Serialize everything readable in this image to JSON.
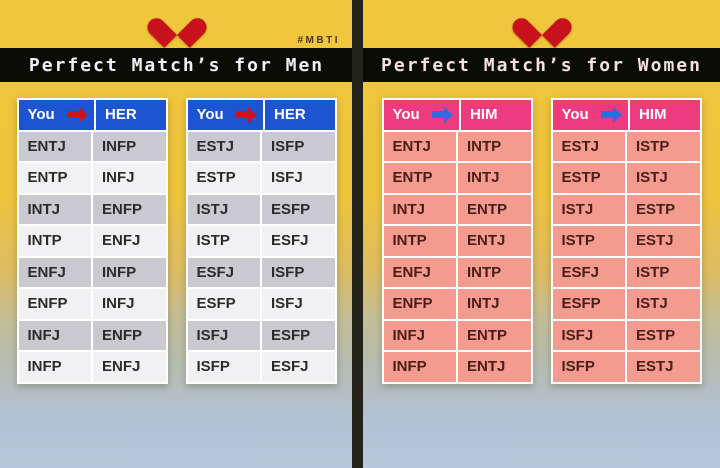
{
  "colors": {
    "bg_top": "#f0c63c",
    "bg_bottom": "#b7c7dc",
    "divider": "#23231a",
    "banner_bg": "#0c0c07",
    "heart": "#c9111d",
    "hashtag_text": "#4a3413",
    "header_text": "#ffffff",
    "men_header_bg": "#1c54d2",
    "men_arrow": "#cc1421",
    "men_row_odd_bg": "#c9c9cf",
    "men_row_even_bg": "#f1f1f4",
    "men_row_text": "#2b2b2b",
    "men_banner_text": "#edf1f7",
    "women_header_bg": "#ee3b7e",
    "women_arrow": "#2e6ce2",
    "women_row_bg": "#f39b8e",
    "women_row_text": "#4b1d17",
    "women_banner_text": "#f5dfe6"
  },
  "panels": [
    {
      "id": "men",
      "hashtag": "#MBTI",
      "banner": "Perfect Match’s for Men"
    },
    {
      "id": "women",
      "banner": "Perfect Match’s for Women"
    }
  ],
  "chart_data": [
    {
      "type": "table",
      "title": "Perfect Match’s for Men",
      "columns": [
        "You",
        "HER"
      ],
      "rows": [
        [
          "ENTJ",
          "INFP"
        ],
        [
          "ENTP",
          "INFJ"
        ],
        [
          "INTJ",
          "ENFP"
        ],
        [
          "INTP",
          "ENFJ"
        ],
        [
          "ENFJ",
          "INFP"
        ],
        [
          "ENFP",
          "INFJ"
        ],
        [
          "INFJ",
          "ENFP"
        ],
        [
          "INFP",
          "ENFJ"
        ]
      ]
    },
    {
      "type": "table",
      "title": "Perfect Match’s for Men",
      "columns": [
        "You",
        "HER"
      ],
      "rows": [
        [
          "ESTJ",
          "ISFP"
        ],
        [
          "ESTP",
          "ISFJ"
        ],
        [
          "ISTJ",
          "ESFP"
        ],
        [
          "ISTP",
          "ESFJ"
        ],
        [
          "ESFJ",
          "ISFP"
        ],
        [
          "ESFP",
          "ISFJ"
        ],
        [
          "ISFJ",
          "ESFP"
        ],
        [
          "ISFP",
          "ESFJ"
        ]
      ]
    },
    {
      "type": "table",
      "title": "Perfect Match’s for Women",
      "columns": [
        "You",
        "HIM"
      ],
      "rows": [
        [
          "ENTJ",
          "INTP"
        ],
        [
          "ENTP",
          "INTJ"
        ],
        [
          "INTJ",
          "ENTP"
        ],
        [
          "INTP",
          "ENTJ"
        ],
        [
          "ENFJ",
          "INTP"
        ],
        [
          "ENFP",
          "INTJ"
        ],
        [
          "INFJ",
          "ENTP"
        ],
        [
          "INFP",
          "ENTJ"
        ]
      ]
    },
    {
      "type": "table",
      "title": "Perfect Match’s for Women",
      "columns": [
        "You",
        "HIM"
      ],
      "rows": [
        [
          "ESTJ",
          "ISTP"
        ],
        [
          "ESTP",
          "ISTJ"
        ],
        [
          "ISTJ",
          "ESTP"
        ],
        [
          "ISTP",
          "ESTJ"
        ],
        [
          "ESFJ",
          "ISTP"
        ],
        [
          "ESFP",
          "ISTJ"
        ],
        [
          "ISFJ",
          "ESTP"
        ],
        [
          "ISFP",
          "ESTJ"
        ]
      ]
    }
  ]
}
